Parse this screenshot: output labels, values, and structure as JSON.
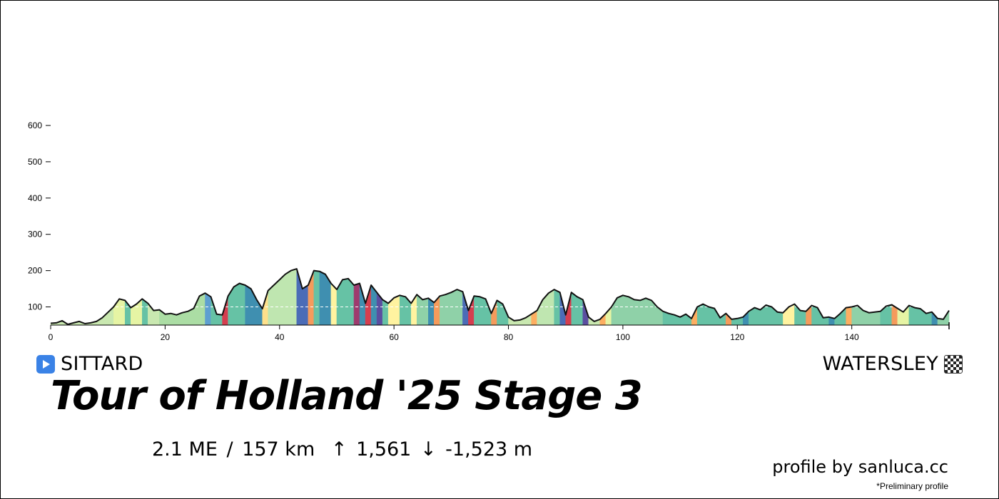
{
  "chart_data": {
    "type": "area",
    "title": "Tour of Holland '25 Stage 3",
    "xlabel": "",
    "ylabel": "",
    "x_unit": "km",
    "y_unit": "m",
    "xlim": [
      0,
      157
    ],
    "ylim": [
      50,
      600
    ],
    "x_ticks": [
      0,
      20,
      40,
      60,
      80,
      100,
      120,
      140
    ],
    "y_ticks": [
      100,
      200,
      300,
      400,
      500,
      600
    ],
    "reference_line_y": 100,
    "grid": false,
    "legend": "none",
    "profile": [
      [
        0,
        55
      ],
      [
        1,
        56
      ],
      [
        2,
        62
      ],
      [
        3,
        52
      ],
      [
        4,
        56
      ],
      [
        5,
        60
      ],
      [
        6,
        54
      ],
      [
        7,
        56
      ],
      [
        8,
        60
      ],
      [
        9,
        70
      ],
      [
        10,
        85
      ],
      [
        11,
        100
      ],
      [
        12,
        122
      ],
      [
        13,
        118
      ],
      [
        14,
        98
      ],
      [
        15,
        108
      ],
      [
        16,
        122
      ],
      [
        17,
        110
      ],
      [
        18,
        90
      ],
      [
        19,
        92
      ],
      [
        20,
        80
      ],
      [
        21,
        82
      ],
      [
        22,
        78
      ],
      [
        23,
        84
      ],
      [
        24,
        88
      ],
      [
        25,
        96
      ],
      [
        26,
        130
      ],
      [
        27,
        138
      ],
      [
        28,
        128
      ],
      [
        29,
        80
      ],
      [
        30,
        78
      ],
      [
        31,
        130
      ],
      [
        32,
        155
      ],
      [
        33,
        165
      ],
      [
        34,
        160
      ],
      [
        35,
        150
      ],
      [
        36,
        120
      ],
      [
        37,
        95
      ],
      [
        38,
        145
      ],
      [
        39,
        160
      ],
      [
        40,
        175
      ],
      [
        41,
        190
      ],
      [
        42,
        200
      ],
      [
        43,
        205
      ],
      [
        44,
        150
      ],
      [
        45,
        160
      ],
      [
        46,
        200
      ],
      [
        47,
        198
      ],
      [
        48,
        190
      ],
      [
        49,
        165
      ],
      [
        50,
        148
      ],
      [
        51,
        175
      ],
      [
        52,
        178
      ],
      [
        53,
        160
      ],
      [
        54,
        165
      ],
      [
        55,
        110
      ],
      [
        56,
        160
      ],
      [
        57,
        140
      ],
      [
        58,
        120
      ],
      [
        59,
        110
      ],
      [
        60,
        125
      ],
      [
        61,
        132
      ],
      [
        62,
        128
      ],
      [
        63,
        110
      ],
      [
        64,
        134
      ],
      [
        65,
        120
      ],
      [
        66,
        124
      ],
      [
        67,
        112
      ],
      [
        68,
        130
      ],
      [
        69,
        134
      ],
      [
        70,
        140
      ],
      [
        71,
        148
      ],
      [
        72,
        142
      ],
      [
        73,
        90
      ],
      [
        74,
        130
      ],
      [
        75,
        128
      ],
      [
        76,
        122
      ],
      [
        77,
        82
      ],
      [
        78,
        118
      ],
      [
        79,
        108
      ],
      [
        80,
        72
      ],
      [
        81,
        62
      ],
      [
        82,
        64
      ],
      [
        83,
        70
      ],
      [
        84,
        80
      ],
      [
        85,
        90
      ],
      [
        86,
        120
      ],
      [
        87,
        138
      ],
      [
        88,
        148
      ],
      [
        89,
        140
      ],
      [
        90,
        78
      ],
      [
        91,
        140
      ],
      [
        92,
        128
      ],
      [
        93,
        120
      ],
      [
        94,
        72
      ],
      [
        95,
        60
      ],
      [
        96,
        66
      ],
      [
        97,
        82
      ],
      [
        98,
        100
      ],
      [
        99,
        125
      ],
      [
        100,
        132
      ],
      [
        101,
        128
      ],
      [
        102,
        120
      ],
      [
        103,
        118
      ],
      [
        104,
        124
      ],
      [
        105,
        118
      ],
      [
        106,
        100
      ],
      [
        107,
        88
      ],
      [
        108,
        82
      ],
      [
        109,
        78
      ],
      [
        110,
        72
      ],
      [
        111,
        80
      ],
      [
        112,
        68
      ],
      [
        113,
        100
      ],
      [
        114,
        108
      ],
      [
        115,
        100
      ],
      [
        116,
        96
      ],
      [
        117,
        70
      ],
      [
        118,
        82
      ],
      [
        119,
        66
      ],
      [
        120,
        68
      ],
      [
        121,
        72
      ],
      [
        122,
        88
      ],
      [
        123,
        98
      ],
      [
        124,
        92
      ],
      [
        125,
        105
      ],
      [
        126,
        100
      ],
      [
        127,
        86
      ],
      [
        128,
        84
      ],
      [
        129,
        100
      ],
      [
        130,
        108
      ],
      [
        131,
        90
      ],
      [
        132,
        88
      ],
      [
        133,
        104
      ],
      [
        134,
        98
      ],
      [
        135,
        70
      ],
      [
        136,
        72
      ],
      [
        137,
        68
      ],
      [
        138,
        82
      ],
      [
        139,
        98
      ],
      [
        140,
        100
      ],
      [
        141,
        104
      ],
      [
        142,
        90
      ],
      [
        143,
        84
      ],
      [
        144,
        86
      ],
      [
        145,
        88
      ],
      [
        146,
        102
      ],
      [
        147,
        106
      ],
      [
        148,
        96
      ],
      [
        149,
        86
      ],
      [
        150,
        104
      ],
      [
        151,
        98
      ],
      [
        152,
        95
      ],
      [
        153,
        82
      ],
      [
        154,
        86
      ],
      [
        155,
        68
      ],
      [
        156,
        66
      ],
      [
        157,
        90
      ]
    ],
    "segments": [
      {
        "from": 0,
        "to": 11,
        "color": "#c9e8b0"
      },
      {
        "from": 11,
        "to": 13,
        "color": "#e6f4a4"
      },
      {
        "from": 13,
        "to": 14,
        "color": "#66c2a5"
      },
      {
        "from": 14,
        "to": 16,
        "color": "#e6f4a4"
      },
      {
        "from": 16,
        "to": 17,
        "color": "#66c2a5"
      },
      {
        "from": 17,
        "to": 19,
        "color": "#c9e8b0"
      },
      {
        "from": 19,
        "to": 27,
        "color": "#abdda4"
      },
      {
        "from": 27,
        "to": 28,
        "color": "#5e9fd0"
      },
      {
        "from": 28,
        "to": 30,
        "color": "#66c2a5"
      },
      {
        "from": 30,
        "to": 31,
        "color": "#d53e4f"
      },
      {
        "from": 31,
        "to": 34,
        "color": "#66c2a5"
      },
      {
        "from": 34,
        "to": 37,
        "color": "#3f8fb0"
      },
      {
        "from": 37,
        "to": 38,
        "color": "#fee08b"
      },
      {
        "from": 38,
        "to": 43,
        "color": "#bfe6b0"
      },
      {
        "from": 43,
        "to": 45,
        "color": "#4b6cb7"
      },
      {
        "from": 45,
        "to": 46,
        "color": "#f59b5c"
      },
      {
        "from": 46,
        "to": 47,
        "color": "#66c2a5"
      },
      {
        "from": 47,
        "to": 49,
        "color": "#3f8fb0"
      },
      {
        "from": 49,
        "to": 50,
        "color": "#fff3a0"
      },
      {
        "from": 50,
        "to": 53,
        "color": "#66c2a5"
      },
      {
        "from": 53,
        "to": 54,
        "color": "#9e3b6e"
      },
      {
        "from": 54,
        "to": 55,
        "color": "#3f8fb0"
      },
      {
        "from": 55,
        "to": 56,
        "color": "#d53e4f"
      },
      {
        "from": 56,
        "to": 57,
        "color": "#3f8fb0"
      },
      {
        "from": 57,
        "to": 58,
        "color": "#5b4ea0"
      },
      {
        "from": 58,
        "to": 59,
        "color": "#66c2a5"
      },
      {
        "from": 59,
        "to": 61,
        "color": "#fff3a0"
      },
      {
        "from": 61,
        "to": 63,
        "color": "#66c2a5"
      },
      {
        "from": 63,
        "to": 64,
        "color": "#fff3a0"
      },
      {
        "from": 64,
        "to": 66,
        "color": "#8fd1a8"
      },
      {
        "from": 66,
        "to": 67,
        "color": "#3f8fb0"
      },
      {
        "from": 67,
        "to": 68,
        "color": "#f59b5c"
      },
      {
        "from": 68,
        "to": 72,
        "color": "#8fd1a8"
      },
      {
        "from": 72,
        "to": 73,
        "color": "#4b6cb7"
      },
      {
        "from": 73,
        "to": 74,
        "color": "#d53e4f"
      },
      {
        "from": 74,
        "to": 77,
        "color": "#66c2a5"
      },
      {
        "from": 77,
        "to": 78,
        "color": "#f59b5c"
      },
      {
        "from": 78,
        "to": 80,
        "color": "#66c2a5"
      },
      {
        "from": 80,
        "to": 84,
        "color": "#c9e8b0"
      },
      {
        "from": 84,
        "to": 85,
        "color": "#fdae61"
      },
      {
        "from": 85,
        "to": 88,
        "color": "#bfe6b0"
      },
      {
        "from": 88,
        "to": 89,
        "color": "#66c2a5"
      },
      {
        "from": 89,
        "to": 90,
        "color": "#4b6cb7"
      },
      {
        "from": 90,
        "to": 91,
        "color": "#d53e4f"
      },
      {
        "from": 91,
        "to": 93,
        "color": "#66c2a5"
      },
      {
        "from": 93,
        "to": 94,
        "color": "#5b4ea0"
      },
      {
        "from": 94,
        "to": 96,
        "color": "#c9e8b0"
      },
      {
        "from": 96,
        "to": 97,
        "color": "#fdae61"
      },
      {
        "from": 97,
        "to": 98,
        "color": "#e6f4a4"
      },
      {
        "from": 98,
        "to": 107,
        "color": "#8fd1a8"
      },
      {
        "from": 107,
        "to": 112,
        "color": "#66c2a5"
      },
      {
        "from": 112,
        "to": 113,
        "color": "#fdae61"
      },
      {
        "from": 113,
        "to": 118,
        "color": "#66c2a5"
      },
      {
        "from": 118,
        "to": 119,
        "color": "#f59b5c"
      },
      {
        "from": 119,
        "to": 121,
        "color": "#66c2a5"
      },
      {
        "from": 121,
        "to": 122,
        "color": "#3f8fb0"
      },
      {
        "from": 122,
        "to": 128,
        "color": "#66c2a5"
      },
      {
        "from": 128,
        "to": 130,
        "color": "#fff3a0"
      },
      {
        "from": 130,
        "to": 132,
        "color": "#66c2a5"
      },
      {
        "from": 132,
        "to": 133,
        "color": "#f59b5c"
      },
      {
        "from": 133,
        "to": 136,
        "color": "#66c2a5"
      },
      {
        "from": 136,
        "to": 137,
        "color": "#3f8fb0"
      },
      {
        "from": 137,
        "to": 139,
        "color": "#66c2a5"
      },
      {
        "from": 139,
        "to": 140,
        "color": "#fdae61"
      },
      {
        "from": 140,
        "to": 145,
        "color": "#8fd1a8"
      },
      {
        "from": 145,
        "to": 147,
        "color": "#66c2a5"
      },
      {
        "from": 147,
        "to": 148,
        "color": "#f59b5c"
      },
      {
        "from": 148,
        "to": 150,
        "color": "#e6f4a4"
      },
      {
        "from": 150,
        "to": 154,
        "color": "#66c2a5"
      },
      {
        "from": 154,
        "to": 155,
        "color": "#3f8fb0"
      },
      {
        "from": 155,
        "to": 157,
        "color": "#8fd1a8"
      }
    ]
  },
  "route": {
    "start": "SITTARD",
    "finish": "WATERSLEY",
    "start_icon": "play-button-icon",
    "finish_icon": "checkered-flag-icon",
    "start_icon_color": "#3a82e6"
  },
  "stats": {
    "effort": "2.1 ME",
    "separator": "/",
    "distance": "157 km",
    "up_arrow": "↑",
    "ascent": "1,561",
    "down_arrow": "↓",
    "descent": "-1,523 m"
  },
  "credit": "profile by sanluca.cc",
  "note": "*Preliminary profile"
}
